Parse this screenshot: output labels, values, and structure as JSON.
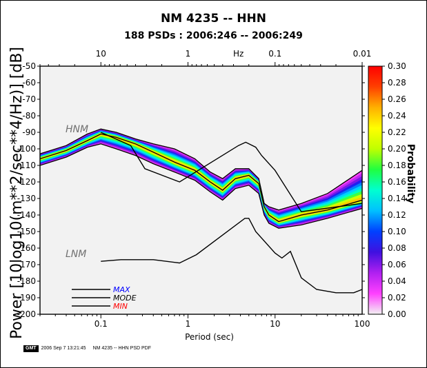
{
  "chart_data": {
    "type": "heatmap",
    "title": "NM 4235 -- HHN",
    "subtitle": "188 PSDs : 2006:246 -- 2006:249",
    "xlabel": "Period (sec)",
    "ylabel": "Power [10log10(m**2/sec**4/Hz)] [dB]",
    "top_axis_label": "Hz",
    "x_scale": "log",
    "xlim": [
      0.02,
      100
    ],
    "ylim": [
      -200,
      -50
    ],
    "x_ticks": [
      "0.1",
      "1",
      "10",
      "100"
    ],
    "top_ticks": [
      "10",
      "1",
      "0.1",
      "0.01"
    ],
    "y_ticks": [
      "-50",
      "-60",
      "-70",
      "-80",
      "-90",
      "-100",
      "-110",
      "-120",
      "-130",
      "-140",
      "-150",
      "-160",
      "-170",
      "-180",
      "-190",
      "-200"
    ],
    "colorbar": {
      "label": "Probability",
      "range": [
        0,
        0.3
      ],
      "ticks": [
        "0.00",
        "0.02",
        "0.04",
        "0.06",
        "0.08",
        "0.10",
        "0.12",
        "0.14",
        "0.16",
        "0.18",
        "0.20",
        "0.22",
        "0.24",
        "0.26",
        "0.28",
        "0.30"
      ],
      "colors": [
        "#f2f2f2",
        "#ff40ff",
        "#b020f0",
        "#4010e0",
        "#0040ff",
        "#00c0ff",
        "#00ffd0",
        "#20ff40",
        "#c0ff00",
        "#ffff00",
        "#ffb000",
        "#ff4000",
        "#ff0000"
      ]
    },
    "reference_labels": {
      "hnm": "HNM",
      "lnm": "LNM"
    },
    "hnm": [
      [
        0.1,
        -90
      ],
      [
        0.22,
        -98
      ],
      [
        0.32,
        -112
      ],
      [
        0.8,
        -120
      ],
      [
        3.8,
        -98
      ],
      [
        4.6,
        -96
      ],
      [
        6,
        -99
      ],
      [
        7,
        -104
      ],
      [
        10,
        -113
      ],
      [
        20,
        -138
      ],
      [
        100,
        -133
      ]
    ],
    "lnm": [
      [
        0.1,
        -168
      ],
      [
        0.17,
        -167
      ],
      [
        0.4,
        -167
      ],
      [
        0.8,
        -169
      ],
      [
        1.25,
        -164
      ],
      [
        3.0,
        -149
      ],
      [
        4.5,
        -142
      ],
      [
        5.0,
        -142
      ],
      [
        6.0,
        -150
      ],
      [
        10,
        -163
      ],
      [
        12,
        -166
      ],
      [
        15,
        -162
      ],
      [
        20,
        -178
      ],
      [
        30,
        -185
      ],
      [
        50,
        -187
      ],
      [
        80,
        -187
      ],
      [
        100,
        -185
      ]
    ],
    "series": [
      {
        "name": "MAX",
        "color": "#000000",
        "text_color": "#0000ff",
        "values": [
          [
            0.02,
            -103
          ],
          [
            0.04,
            -98
          ],
          [
            0.07,
            -91
          ],
          [
            0.1,
            -88
          ],
          [
            0.15,
            -90
          ],
          [
            0.25,
            -94
          ],
          [
            0.4,
            -97
          ],
          [
            0.7,
            -100
          ],
          [
            1.2,
            -106
          ],
          [
            1.8,
            -114
          ],
          [
            2.5,
            -118
          ],
          [
            3.5,
            -112
          ],
          [
            5.0,
            -112
          ],
          [
            6.5,
            -118
          ],
          [
            7.5,
            -133
          ],
          [
            8.5,
            -135
          ],
          [
            11,
            -137
          ],
          [
            20,
            -133
          ],
          [
            40,
            -127
          ],
          [
            100,
            -113
          ]
        ]
      },
      {
        "name": "MODE",
        "color": "#000000",
        "text_color": "#000000",
        "values": [
          [
            0.02,
            -106
          ],
          [
            0.04,
            -101
          ],
          [
            0.07,
            -95
          ],
          [
            0.1,
            -91
          ],
          [
            0.15,
            -93
          ],
          [
            0.25,
            -97
          ],
          [
            0.4,
            -102
          ],
          [
            0.7,
            -108
          ],
          [
            1.2,
            -113
          ],
          [
            1.8,
            -120
          ],
          [
            2.5,
            -125
          ],
          [
            3.5,
            -118
          ],
          [
            5.0,
            -116
          ],
          [
            6.5,
            -121
          ],
          [
            7.5,
            -135
          ],
          [
            8.5,
            -140
          ],
          [
            11,
            -144
          ],
          [
            20,
            -140
          ],
          [
            40,
            -137
          ],
          [
            100,
            -131
          ]
        ]
      },
      {
        "name": "MIN",
        "color": "#000000",
        "text_color": "#ff0000",
        "values": [
          [
            0.02,
            -110
          ],
          [
            0.04,
            -105
          ],
          [
            0.07,
            -99
          ],
          [
            0.1,
            -97
          ],
          [
            0.15,
            -100
          ],
          [
            0.25,
            -104
          ],
          [
            0.4,
            -109
          ],
          [
            0.7,
            -114
          ],
          [
            1.2,
            -119
          ],
          [
            1.8,
            -126
          ],
          [
            2.5,
            -131
          ],
          [
            3.5,
            -124
          ],
          [
            5.0,
            -122
          ],
          [
            6.5,
            -127
          ],
          [
            7.5,
            -140
          ],
          [
            8.5,
            -145
          ],
          [
            11,
            -148
          ],
          [
            20,
            -146
          ],
          [
            40,
            -142
          ],
          [
            100,
            -136
          ]
        ]
      }
    ]
  },
  "footer": {
    "logo": "GMT",
    "timestamp": "2006 Sep  7 13:21:45",
    "caption": "NM 4235 -- HHN PSD PDF"
  }
}
